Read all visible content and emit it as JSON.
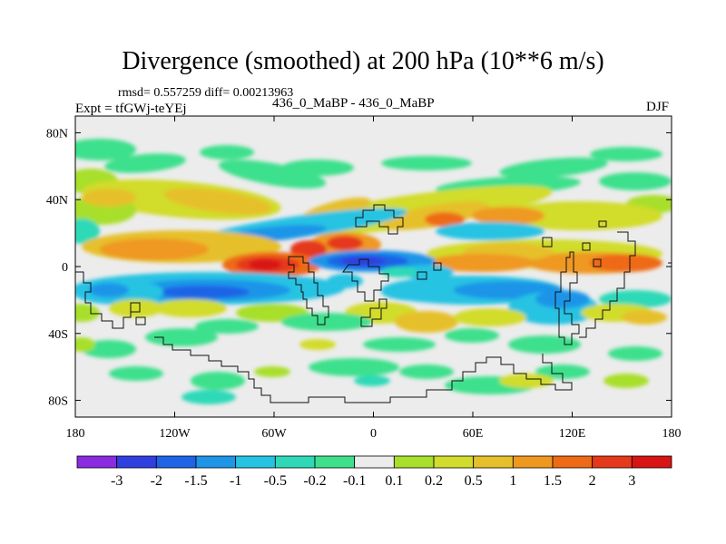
{
  "header": {
    "title": "Divergence (smoothed) at 200 hPa (10**6 m/s)",
    "rmsd_label": "rmsd= 0.557259 diff= 0.00213963",
    "expt_label": "Expt = tfGWj-teYEj",
    "case_label": "436_0_MaBP - 436_0_MaBP",
    "season_label": "DJF"
  },
  "chart_data": {
    "type": "heatmap",
    "title": "Divergence (smoothed) at 200 hPa (10**6 m/s)",
    "units": "10**6 m/s",
    "xlim": [
      -180,
      180
    ],
    "ylim": [
      -90,
      90
    ],
    "x_ticks": [
      {
        "value": -180,
        "label": "180"
      },
      {
        "value": -120,
        "label": "120W"
      },
      {
        "value": -60,
        "label": "60W"
      },
      {
        "value": 0,
        "label": "0"
      },
      {
        "value": 60,
        "label": "60E"
      },
      {
        "value": 120,
        "label": "120E"
      },
      {
        "value": 180,
        "label": "180"
      }
    ],
    "y_ticks": [
      {
        "value": 80,
        "label": "80N"
      },
      {
        "value": 40,
        "label": "40N"
      },
      {
        "value": 0,
        "label": "0"
      },
      {
        "value": -40,
        "label": "40S"
      },
      {
        "value": -80,
        "label": "80S"
      }
    ],
    "colorbar": {
      "labels": [
        "-3",
        "-2",
        "-1.5",
        "-1",
        "-0.5",
        "-0.2",
        "-0.1",
        "0.1",
        "0.2",
        "0.5",
        "1",
        "1.5",
        "2",
        "3"
      ],
      "colors": [
        "#8a2be2",
        "#2f3fe0",
        "#1e64e6",
        "#1f95e8",
        "#25c3e3",
        "#2fd9b8",
        "#3ee08c",
        "#ececec",
        "#a8df2a",
        "#d2dc2c",
        "#e6c02a",
        "#ef9820",
        "#ee6a16",
        "#e5391c",
        "#d81414"
      ]
    },
    "features": [
      {
        "type": "dipole",
        "lon": -60,
        "lat": 2,
        "value": 2.5
      },
      {
        "type": "dipole",
        "lon": -5,
        "lat": 2,
        "value": -2.5
      },
      {
        "type": "band",
        "lat": 18,
        "value": 1.0
      },
      {
        "type": "band",
        "lat": -15,
        "value": -0.8
      }
    ]
  }
}
